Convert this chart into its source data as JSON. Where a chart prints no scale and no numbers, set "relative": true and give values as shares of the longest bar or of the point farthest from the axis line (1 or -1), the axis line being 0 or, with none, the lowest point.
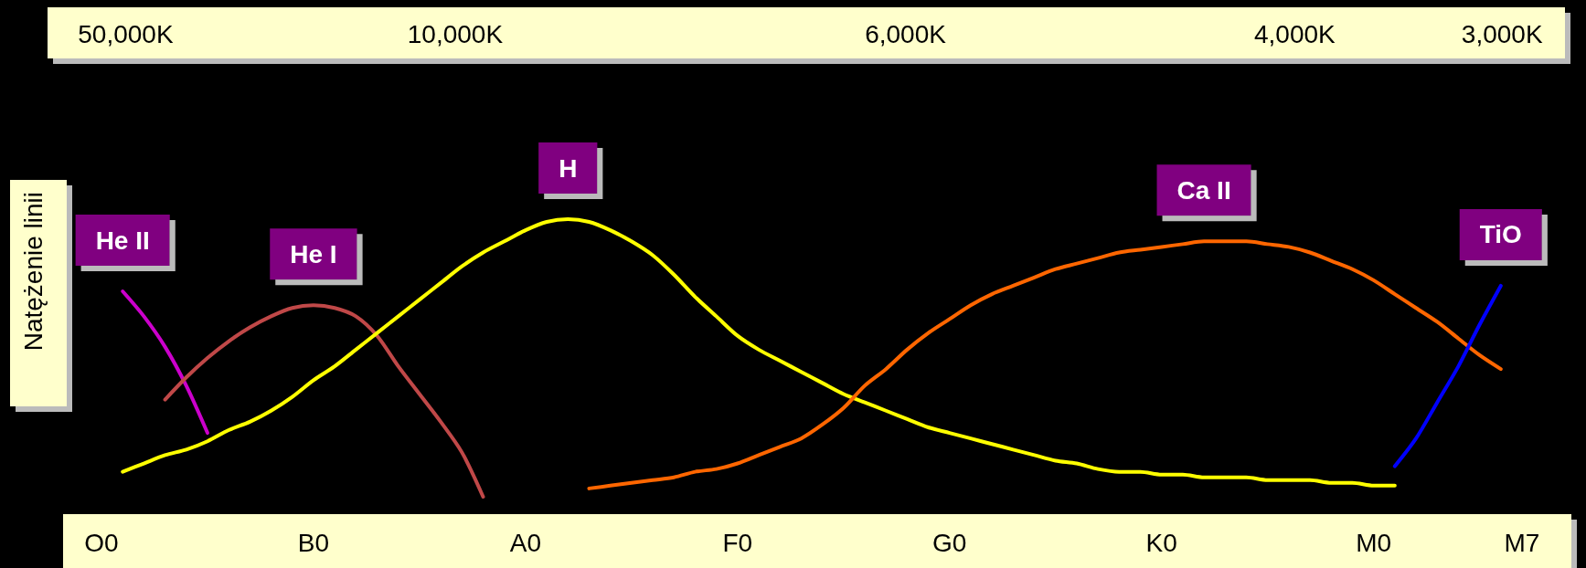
{
  "chart_data": {
    "type": "line",
    "relative": true,
    "ylabel": "Natężenie linii",
    "categories": [
      "O0",
      null,
      null,
      null,
      null,
      null,
      null,
      null,
      null,
      null,
      "B0",
      null,
      null,
      null,
      null,
      null,
      null,
      null,
      null,
      null,
      "A0",
      null,
      null,
      null,
      null,
      null,
      null,
      null,
      null,
      null,
      "F0",
      null,
      null,
      null,
      null,
      null,
      null,
      null,
      null,
      null,
      "G0",
      null,
      null,
      null,
      null,
      null,
      null,
      null,
      null,
      null,
      "K0",
      null,
      null,
      null,
      null,
      null,
      null,
      null,
      null,
      null,
      "M0",
      null,
      null,
      null,
      null,
      null,
      null,
      "M7"
    ],
    "annotations": [
      "50,000K",
      "10,000K",
      "6,000K",
      "4,000K",
      "3,000K"
    ],
    "series": [
      {
        "name": "He II",
        "color": "#cc00cc",
        "values": [
          null,
          0.74,
          0.65,
          0.54,
          0.4,
          0.23,
          null,
          null,
          null,
          null,
          null,
          null,
          null,
          null,
          null,
          null,
          null,
          null,
          null,
          null,
          null,
          null,
          null,
          null,
          null,
          null,
          null,
          null,
          null,
          null,
          null,
          null,
          null,
          null,
          null,
          null,
          null,
          null,
          null,
          null,
          null,
          null,
          null,
          null,
          null,
          null,
          null,
          null,
          null,
          null,
          null,
          null,
          null,
          null,
          null,
          null,
          null,
          null,
          null,
          null,
          null,
          null,
          null,
          null,
          null,
          null,
          null,
          null
        ]
      },
      {
        "name": "He I",
        "color": "#c04848",
        "values": [
          null,
          null,
          null,
          0.35,
          0.43,
          0.5,
          0.56,
          0.61,
          0.65,
          0.68,
          0.69,
          0.68,
          0.65,
          0.58,
          0.47,
          0.37,
          0.27,
          0.16,
          0,
          null,
          null,
          null,
          null,
          null,
          null,
          null,
          null,
          null,
          null,
          null,
          null,
          null,
          null,
          null,
          null,
          null,
          null,
          null,
          null,
          null,
          null,
          null,
          null,
          null,
          null,
          null,
          null,
          null,
          null,
          null,
          null,
          null,
          null,
          null,
          null,
          null,
          null,
          null,
          null,
          null,
          null,
          null,
          null,
          null,
          null,
          null,
          null,
          null
        ]
      },
      {
        "name": "H",
        "color": "#ffff00",
        "values": [
          null,
          0.09,
          0.12,
          0.15,
          0.17,
          0.2,
          0.24,
          0.27,
          0.31,
          0.36,
          0.42,
          0.47,
          0.53,
          0.59,
          0.65,
          0.71,
          0.77,
          0.83,
          0.88,
          0.92,
          0.96,
          0.99,
          1,
          0.99,
          0.96,
          0.92,
          0.87,
          0.8,
          0.72,
          0.65,
          0.58,
          0.53,
          0.49,
          0.45,
          0.41,
          0.37,
          0.34,
          0.31,
          0.28,
          0.25,
          0.23,
          0.21,
          0.19,
          0.17,
          0.15,
          0.13,
          0.12,
          0.1,
          0.09,
          0.09,
          0.08,
          0.08,
          0.07,
          0.07,
          0.07,
          0.06,
          0.06,
          0.06,
          0.05,
          0.05,
          0.04,
          0.04,
          null,
          null,
          null,
          null,
          null,
          null
        ]
      },
      {
        "name": "Ca II",
        "color": "#ff6600",
        "values": [
          null,
          null,
          null,
          null,
          null,
          null,
          null,
          null,
          null,
          null,
          null,
          null,
          null,
          null,
          null,
          null,
          null,
          null,
          null,
          null,
          null,
          null,
          null,
          0.03,
          0.04,
          0.05,
          0.06,
          0.07,
          0.09,
          0.1,
          0.12,
          0.15,
          0.18,
          0.21,
          0.26,
          0.32,
          0.4,
          0.46,
          0.53,
          0.59,
          0.64,
          0.69,
          0.73,
          0.76,
          0.79,
          0.82,
          0.84,
          0.86,
          0.88,
          0.89,
          0.9,
          0.91,
          0.92,
          0.92,
          0.92,
          0.91,
          0.9,
          0.88,
          0.85,
          0.82,
          0.78,
          0.73,
          0.68,
          0.63,
          0.57,
          0.51,
          0.46,
          null
        ]
      },
      {
        "name": "TiO",
        "color": "#0000ff",
        "values": [
          null,
          null,
          null,
          null,
          null,
          null,
          null,
          null,
          null,
          null,
          null,
          null,
          null,
          null,
          null,
          null,
          null,
          null,
          null,
          null,
          null,
          null,
          null,
          null,
          null,
          null,
          null,
          null,
          null,
          null,
          null,
          null,
          null,
          null,
          null,
          null,
          null,
          null,
          null,
          null,
          null,
          null,
          null,
          null,
          null,
          null,
          null,
          null,
          null,
          null,
          null,
          null,
          null,
          null,
          null,
          null,
          null,
          null,
          null,
          null,
          null,
          0.11,
          0.21,
          0.34,
          0.47,
          0.62,
          0.76,
          null
        ]
      }
    ]
  }
}
